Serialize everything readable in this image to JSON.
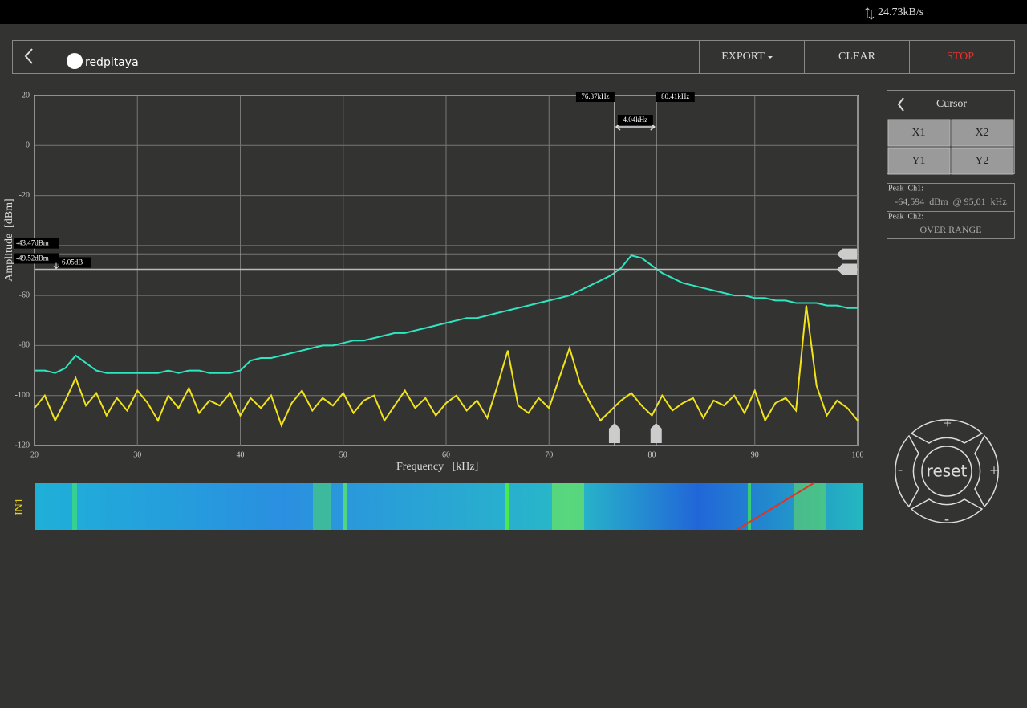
{
  "status": {
    "rate": "24.73kB/s"
  },
  "header": {
    "logo": "redpitaya",
    "export": "EXPORT",
    "clear": "CLEAR",
    "stop": "STOP"
  },
  "chart_data": {
    "type": "line",
    "x_label": "Frequency   [kHz]",
    "y_label": "Amplitude  [dBm]",
    "xlim": [
      20,
      100
    ],
    "xticks": [
      20,
      30,
      40,
      50,
      60,
      70,
      80,
      90,
      100
    ],
    "ylim": [
      -120,
      20
    ],
    "yticks": [
      20,
      0,
      -20,
      -40,
      -60,
      -80,
      -100,
      -120
    ],
    "grid": true,
    "x": [
      20,
      21,
      22,
      23,
      24,
      25,
      26,
      27,
      28,
      29,
      30,
      31,
      32,
      33,
      34,
      35,
      36,
      37,
      38,
      39,
      40,
      41,
      42,
      43,
      44,
      45,
      46,
      47,
      48,
      49,
      50,
      51,
      52,
      53,
      54,
      55,
      56,
      57,
      58,
      59,
      60,
      61,
      62,
      63,
      64,
      65,
      66,
      67,
      68,
      69,
      70,
      71,
      72,
      73,
      74,
      75,
      76,
      77,
      78,
      79,
      80,
      81,
      82,
      83,
      84,
      85,
      86,
      87,
      88,
      89,
      90,
      91,
      92,
      93,
      94,
      95,
      96,
      97,
      98,
      99,
      100
    ],
    "series": [
      {
        "color": "#2ee6c0",
        "values": [
          -90,
          -90,
          -91,
          -89,
          -84,
          -87,
          -90,
          -91,
          -91,
          -91,
          -91,
          -91,
          -91,
          -90,
          -91,
          -90,
          -90,
          -91,
          -91,
          -91,
          -90,
          -86,
          -85,
          -85,
          -84,
          -83,
          -82,
          -81,
          -80,
          -80,
          -79,
          -78,
          -78,
          -77,
          -76,
          -75,
          -75,
          -74,
          -73,
          -72,
          -71,
          -70,
          -69,
          -69,
          -68,
          -67,
          -66,
          -65,
          -64,
          -63,
          -62,
          -61,
          -60,
          -58,
          -56,
          -54,
          -52,
          -49,
          -44,
          -45,
          -48,
          -51,
          -53,
          -55,
          -56,
          -57,
          -58,
          -59,
          -60,
          -60,
          -61,
          -61,
          -62,
          -62,
          -63,
          -63,
          -63,
          -64,
          -64,
          -65,
          -65
        ]
      },
      {
        "color": "#f2e41a",
        "values": [
          -105,
          -100,
          -110,
          -102,
          -93,
          -104,
          -99,
          -108,
          -101,
          -106,
          -98,
          -103,
          -110,
          -100,
          -105,
          -97,
          -107,
          -102,
          -104,
          -99,
          -108,
          -101,
          -105,
          -100,
          -112,
          -103,
          -98,
          -106,
          -101,
          -104,
          -99,
          -107,
          -102,
          -100,
          -110,
          -104,
          -98,
          -105,
          -101,
          -108,
          -103,
          -100,
          -106,
          -102,
          -109,
          -96,
          -82,
          -104,
          -107,
          -101,
          -105,
          -93,
          -81,
          -95,
          -103,
          -110,
          -106,
          -102,
          -99,
          -104,
          -108,
          -100,
          -106,
          -103,
          -101,
          -109,
          -102,
          -104,
          -100,
          -107,
          -98,
          -110,
          -103,
          -101,
          -106,
          -64,
          -96,
          -108,
          -102,
          -105,
          -110
        ]
      }
    ],
    "cursors": {
      "x": [
        {
          "value": 76.37,
          "label": "76.37kHz"
        },
        {
          "value": 80.41,
          "label": "80.41kHz"
        }
      ],
      "dx": "4.04kHz",
      "y": [
        {
          "value": -43.47,
          "label": "-43.47dBm"
        },
        {
          "value": -49.52,
          "label": "-49.52dBm"
        }
      ],
      "dy": "6.05dB"
    }
  },
  "waterfall": {
    "channel": "IN1"
  },
  "cursor_panel": {
    "title": "Cursor",
    "buttons": [
      "X1",
      "X2",
      "Y1",
      "Y2"
    ],
    "peaks": [
      {
        "label": "Peak  Ch1:",
        "value": "-64,594  dBm  @ 95,01  kHz"
      },
      {
        "label": "Peak  Ch2:",
        "value": "OVER RANGE"
      }
    ]
  },
  "zoom": {
    "reset": "reset",
    "up": "+",
    "left": "-",
    "right": "+",
    "down": "-"
  }
}
